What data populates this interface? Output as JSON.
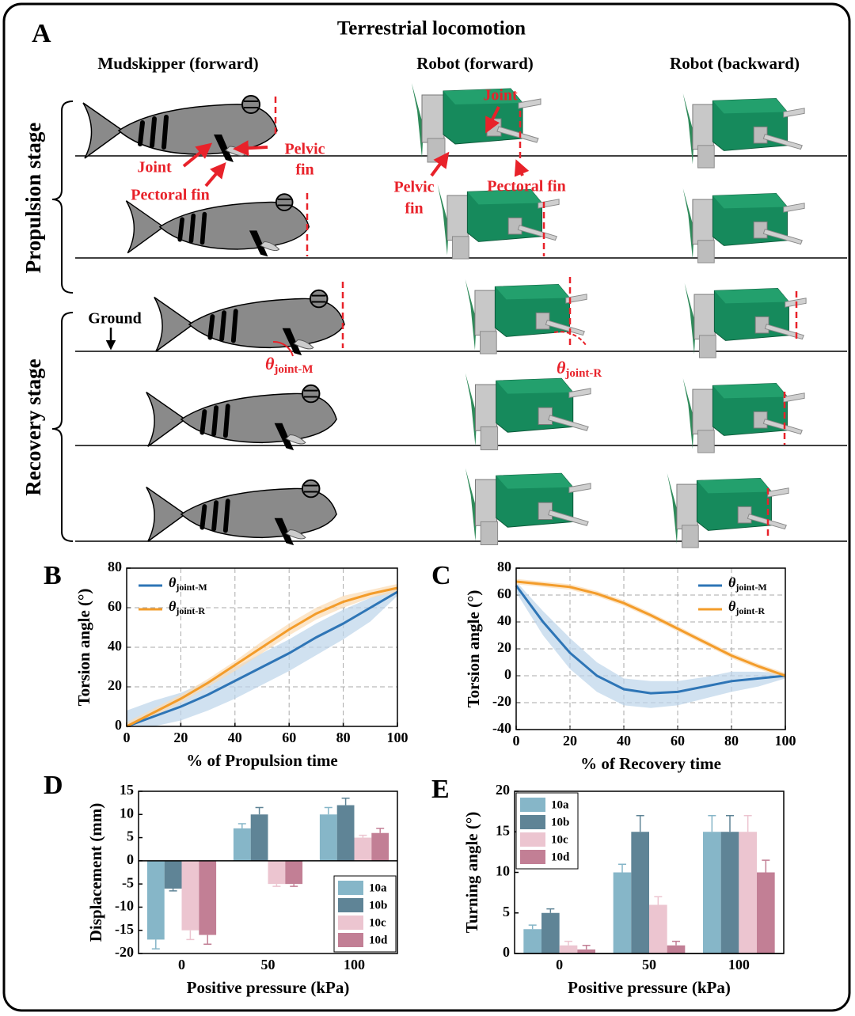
{
  "panel_a": {
    "label": "A",
    "title": "Terrestrial locomotion",
    "columns": [
      "Mudskipper (forward)",
      "Robot (forward)",
      "Robot (backward)"
    ],
    "stages": [
      "Propulsion stage",
      "Recovery stage"
    ],
    "annotations": {
      "joint_m": "Joint",
      "pectoral_fin_m": "Pectoral fin",
      "pelvic_fin_m": [
        "Pelvic",
        "fin"
      ],
      "joint_r": "Joint",
      "pelvic_fin_r": [
        "Pelvic",
        "fin"
      ],
      "pectoral_fin_r": "Pectoral fin",
      "ground": "Ground",
      "theta_m": {
        "symbol": "θ",
        "subscript": "joint-M"
      },
      "theta_r": {
        "symbol": "θ",
        "subscript": "joint-R"
      }
    }
  },
  "chart_data": [
    {
      "type": "line",
      "panel_label": "B",
      "xlabel": "% of Propulsion time",
      "ylabel": "Torsion angle (°)",
      "x": [
        0,
        10,
        20,
        30,
        40,
        50,
        60,
        70,
        80,
        90,
        100
      ],
      "series": [
        {
          "name": "θjoint-M",
          "color": "#2e75b6",
          "band_color": "#bcd4ea",
          "values": [
            0,
            5,
            10,
            16,
            23,
            30,
            37,
            45,
            52,
            60,
            68
          ],
          "lower": [
            0,
            0,
            3,
            8,
            14,
            21,
            28,
            36,
            44,
            53,
            66
          ],
          "upper": [
            8,
            13,
            17,
            23,
            30,
            37,
            44,
            52,
            59,
            65,
            70
          ]
        },
        {
          "name": "θjoint-R",
          "color": "#f39c2a",
          "band_color": "#fbdcb4",
          "values": [
            0,
            7,
            14,
            22,
            31,
            40,
            49,
            57,
            63,
            67,
            70
          ],
          "lower": [
            0,
            5,
            12,
            20,
            28,
            37,
            46,
            54,
            60,
            65,
            68
          ],
          "upper": [
            2,
            9,
            16,
            24,
            33,
            43,
            52,
            60,
            66,
            69,
            72
          ]
        }
      ],
      "xlim": [
        0,
        100
      ],
      "xticks": [
        0,
        20,
        40,
        60,
        80,
        100
      ],
      "ylim": [
        0,
        80
      ],
      "yticks": [
        0,
        20,
        40,
        60,
        80
      ],
      "grid": true,
      "legend": "upper-left"
    },
    {
      "type": "line",
      "panel_label": "C",
      "xlabel": "% of Recovery time",
      "ylabel": "Torsion angle (°)",
      "x": [
        0,
        10,
        20,
        30,
        40,
        50,
        60,
        70,
        80,
        90,
        100
      ],
      "series": [
        {
          "name": "θjoint-M",
          "color": "#2e75b6",
          "band_color": "#bcd4ea",
          "values": [
            67,
            40,
            17,
            0,
            -10,
            -13,
            -12,
            -8,
            -4,
            -2,
            0
          ],
          "lower": [
            62,
            30,
            5,
            -12,
            -22,
            -24,
            -22,
            -17,
            -12,
            -8,
            -2
          ],
          "upper": [
            70,
            48,
            28,
            10,
            -2,
            -4,
            -4,
            -1,
            3,
            3,
            2
          ]
        },
        {
          "name": "θjoint-R",
          "color": "#f39c2a",
          "band_color": "#fbdcb4",
          "values": [
            70,
            68,
            66,
            61,
            54,
            45,
            35,
            25,
            15,
            7,
            0
          ],
          "lower": [
            68,
            66,
            64,
            59,
            52,
            43,
            33,
            23,
            13,
            5,
            -2
          ],
          "upper": [
            72,
            70,
            68,
            63,
            56,
            47,
            37,
            27,
            17,
            9,
            2
          ]
        }
      ],
      "xlim": [
        0,
        100
      ],
      "xticks": [
        0,
        20,
        40,
        60,
        80,
        100
      ],
      "ylim": [
        -40,
        80
      ],
      "yticks": [
        -40,
        -20,
        0,
        20,
        40,
        60,
        80
      ],
      "grid": true,
      "legend": "upper-right"
    },
    {
      "type": "bar",
      "panel_label": "D",
      "xlabel": "Positive pressure (kPa)",
      "ylabel": "Displacement (mm)",
      "categories": [
        "0",
        "50",
        "100"
      ],
      "series": [
        {
          "name": "10a",
          "color": "#86b6c8",
          "values": [
            -17,
            7,
            10
          ],
          "errors": [
            2,
            1,
            1.5
          ]
        },
        {
          "name": "10b",
          "color": "#5f8496",
          "values": [
            -6,
            10,
            12
          ],
          "errors": [
            0.5,
            1.5,
            1.5
          ]
        },
        {
          "name": "10c",
          "color": "#ecc5d0",
          "values": [
            -15,
            -5,
            5
          ],
          "errors": [
            2,
            0.5,
            0.5
          ]
        },
        {
          "name": "10d",
          "color": "#c27f95",
          "values": [
            -16,
            -5,
            6
          ],
          "errors": [
            2,
            0.5,
            1
          ]
        }
      ],
      "ylim": [
        -20,
        15
      ],
      "yticks": [
        -20,
        -15,
        -10,
        -5,
        0,
        5,
        10,
        15
      ],
      "grid": false,
      "legend": "lower-right"
    },
    {
      "type": "bar",
      "panel_label": "E",
      "xlabel": "Positive pressure (kPa)",
      "ylabel": "Turning angle (°)",
      "categories": [
        "0",
        "50",
        "100"
      ],
      "series": [
        {
          "name": "10a",
          "color": "#86b6c8",
          "values": [
            3,
            10,
            15
          ],
          "errors": [
            0.5,
            1,
            2
          ]
        },
        {
          "name": "10b",
          "color": "#5f8496",
          "values": [
            5,
            15,
            15
          ],
          "errors": [
            0.5,
            2,
            2
          ]
        },
        {
          "name": "10c",
          "color": "#ecc5d0",
          "values": [
            1,
            6,
            15
          ],
          "errors": [
            0.5,
            1,
            2
          ]
        },
        {
          "name": "10d",
          "color": "#c27f95",
          "values": [
            0.5,
            1,
            10
          ],
          "errors": [
            0.5,
            0.5,
            1.5
          ]
        }
      ],
      "ylim": [
        0,
        20
      ],
      "yticks": [
        0,
        5,
        10,
        15,
        20
      ],
      "grid": false,
      "legend": "upper-left"
    }
  ]
}
